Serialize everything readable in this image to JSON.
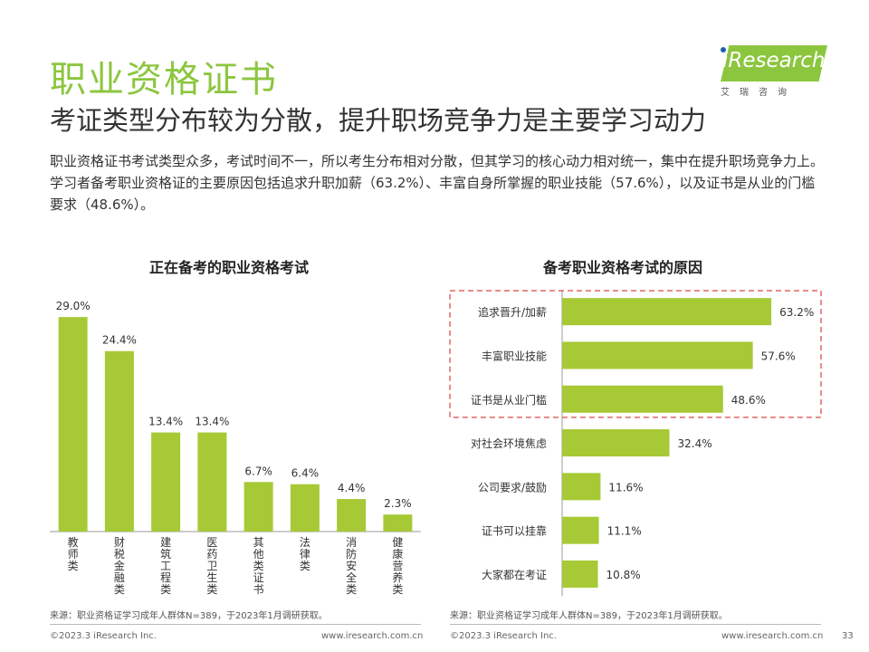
{
  "header": {
    "title": "职业资格证书",
    "subtitle": "考证类型分布较为分散，提升职场竞争力是主要学习动力",
    "description": "职业资格证书考试类型众多，考试时间不一，所以考生分布相对分散，但其学习的核心动力相对统一，集中在提升职场竞争力上。学习者备考职业资格证的主要原因包括追求升职加薪（63.2%）、丰富自身所掌握的职业技能（57.6%），以及证书是从业的门槛要求（48.6%）。"
  },
  "logo": {
    "text": "iResearch",
    "cn": "艾瑞咨询"
  },
  "colors": {
    "bar": "#a6c935",
    "accent": "#8cc63f",
    "highlight_box": "#e06666"
  },
  "chart_data": [
    {
      "type": "bar",
      "title": "正在备考的职业资格考试",
      "categories": [
        "教师类",
        "财税金融类",
        "建筑工程类",
        "医药卫生类",
        "其他类证书",
        "法律类",
        "消防安全类",
        "健康营养类"
      ],
      "values": [
        29.0,
        24.4,
        13.4,
        13.4,
        6.7,
        6.4,
        4.4,
        2.3
      ],
      "labels": [
        "29.0%",
        "24.4%",
        "13.4%",
        "13.4%",
        "6.7%",
        "6.4%",
        "4.4%",
        "2.3%"
      ],
      "ylim": [
        0,
        30
      ],
      "orientation": "vertical",
      "xlabel": "",
      "ylabel": ""
    },
    {
      "type": "bar",
      "title": "备考职业资格考试的原因",
      "categories": [
        "追求晋升/加薪",
        "丰富职业技能",
        "证书是从业门槛",
        "对社会环境焦虑",
        "公司要求/鼓励",
        "证书可以挂靠",
        "大家都在考证"
      ],
      "values": [
        63.2,
        57.6,
        48.6,
        32.4,
        11.6,
        11.1,
        10.8
      ],
      "labels": [
        "63.2%",
        "57.6%",
        "48.6%",
        "32.4%",
        "11.6%",
        "11.1%",
        "10.8%"
      ],
      "xlim": [
        0,
        70
      ],
      "orientation": "horizontal",
      "highlighted": [
        0,
        1,
        2
      ],
      "xlabel": "",
      "ylabel": ""
    }
  ],
  "footer": {
    "source_left": "来源：职业资格证学习成年人群体N=389，于2023年1月调研获取。",
    "source_right": "来源：职业资格证学习成年人群体N=389，于2023年1月调研获取。",
    "copyright_left": "©2023.3 iResearch Inc.",
    "url_left": "www.iresearch.com.cn",
    "copyright_right": "©2023.3 iResearch Inc.",
    "url_right": "www.iresearch.com.cn",
    "page_number": "33"
  }
}
